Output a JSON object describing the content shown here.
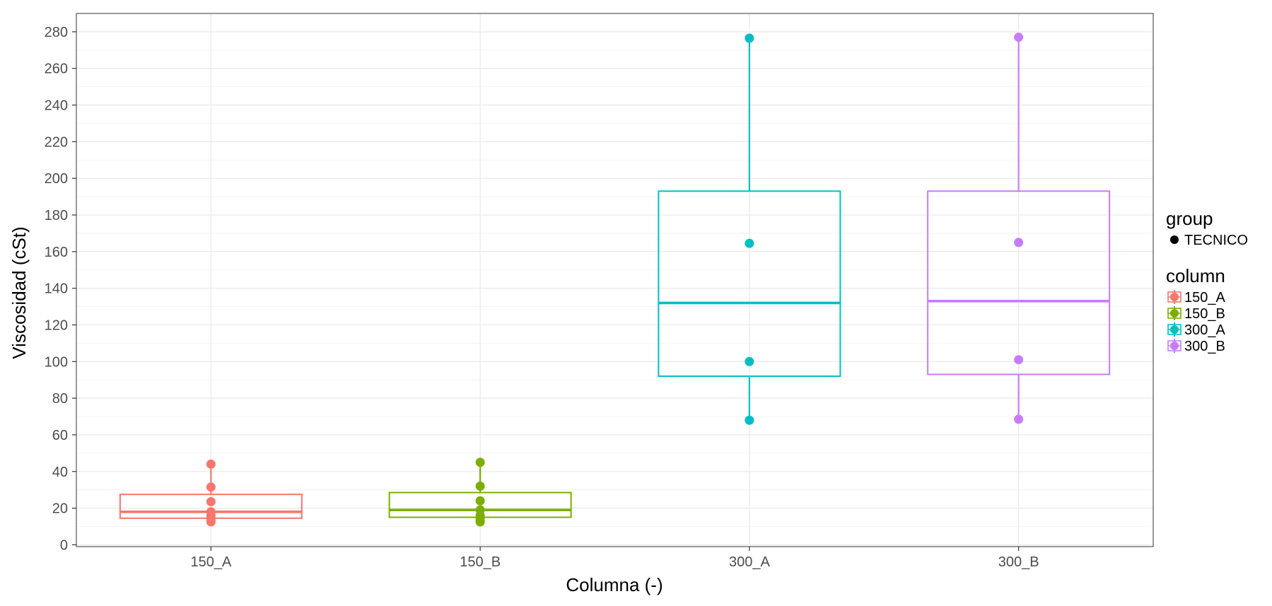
{
  "chart_data": {
    "type": "box",
    "title": "",
    "xlabel": "Columna (-)",
    "ylabel": "Viscosidad (cSt)",
    "ylim": [
      -1,
      290
    ],
    "yticks": [
      0,
      20,
      40,
      60,
      80,
      100,
      120,
      140,
      160,
      180,
      200,
      220,
      240,
      260,
      280
    ],
    "categories": [
      "150_A",
      "150_B",
      "300_A",
      "300_B"
    ],
    "grid": true,
    "legend_position": "right",
    "legends": [
      {
        "title": "group",
        "entries": [
          {
            "label": "TECNICO",
            "color": "#000000"
          }
        ]
      },
      {
        "title": "column",
        "entries": [
          {
            "label": "150_A",
            "color": "#F8766D"
          },
          {
            "label": "150_B",
            "color": "#7CAE00"
          },
          {
            "label": "300_A",
            "color": "#00BFC4"
          },
          {
            "label": "300_B",
            "color": "#C77CFF"
          }
        ]
      }
    ],
    "series": [
      {
        "category": "150_A",
        "color": "#F8766D",
        "box": {
          "lower_whisker": 12.5,
          "q1": 14.5,
          "median": 18,
          "q3": 27.5,
          "upper_whisker": 44
        },
        "points": [
          44,
          31.5,
          23.5,
          18,
          16,
          14.5,
          13,
          12.5
        ]
      },
      {
        "category": "150_B",
        "color": "#7CAE00",
        "box": {
          "lower_whisker": 12.5,
          "q1": 15,
          "median": 19,
          "q3": 28.5,
          "upper_whisker": 45
        },
        "points": [
          45,
          32,
          24,
          19,
          16,
          14.5,
          13,
          12.5
        ]
      },
      {
        "category": "300_A",
        "color": "#00BFC4",
        "box": {
          "lower_whisker": 68,
          "q1": 92,
          "median": 132,
          "q3": 193,
          "upper_whisker": 276.5
        },
        "points": [
          276.5,
          164.5,
          100,
          68
        ]
      },
      {
        "category": "300_B",
        "color": "#C77CFF",
        "box": {
          "lower_whisker": 68.5,
          "q1": 93,
          "median": 133,
          "q3": 193,
          "upper_whisker": 277
        },
        "points": [
          277,
          165,
          101,
          68.5
        ]
      }
    ]
  }
}
